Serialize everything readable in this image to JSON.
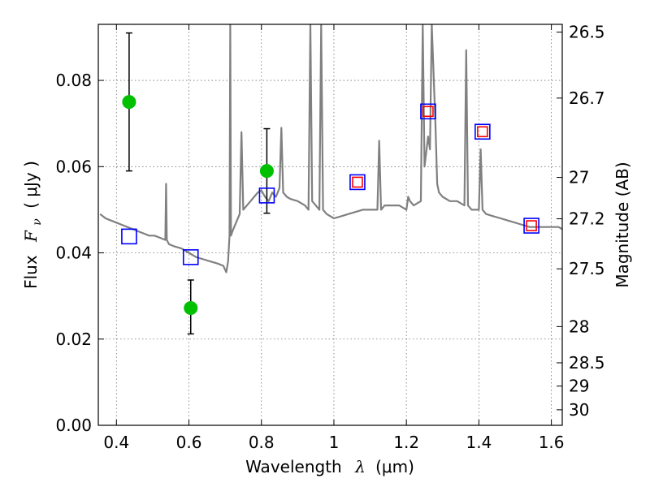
{
  "chart_data": {
    "type": "scatter",
    "xlabel": "Wavelength",
    "xlabel_symbol": "λ",
    "xlabel_unit": "(μm)",
    "ylabel": "Flux",
    "ylabel_symbol": "F",
    "ylabel_subscript": "ν",
    "ylabel_unit": "( μJy )",
    "y2label": "Magnitude (AB)",
    "xlim": [
      0.35,
      1.63
    ],
    "ylim": [
      0.0,
      0.093
    ],
    "grid": true,
    "x_ticks": [
      0.4,
      0.6,
      0.8,
      1.0,
      1.2,
      1.4,
      1.6
    ],
    "x_tick_labels": [
      "0.4",
      "0.6",
      "0.8",
      "1",
      "1.2",
      "1.4",
      "1.6"
    ],
    "y_ticks": [
      0.0,
      0.02,
      0.04,
      0.06,
      0.08
    ],
    "y_tick_labels": [
      "0.00",
      "0.02",
      "0.04",
      "0.06",
      "0.08"
    ],
    "y2_ticks": [
      {
        "label": "26.5",
        "flux": 0.0912
      },
      {
        "label": "26.7",
        "flux": 0.0759
      },
      {
        "label": "27",
        "flux": 0.0575
      },
      {
        "label": "27.2",
        "flux": 0.0479
      },
      {
        "label": "27.5",
        "flux": 0.0363
      },
      {
        "label": "28",
        "flux": 0.0229
      },
      {
        "label": "28.5",
        "flux": 0.0145
      },
      {
        "label": "29",
        "flux": 0.0091
      },
      {
        "label": "30",
        "flux": 0.0036
      }
    ],
    "series": [
      {
        "kind": "line",
        "color": "#808080",
        "x": [
          0.355,
          0.37,
          0.385,
          0.4,
          0.415,
          0.43,
          0.445,
          0.46,
          0.475,
          0.49,
          0.505,
          0.52,
          0.535,
          0.537,
          0.539,
          0.545,
          0.56,
          0.58,
          0.6,
          0.62,
          0.64,
          0.66,
          0.68,
          0.695,
          0.703,
          0.708,
          0.712,
          0.714,
          0.716,
          0.72,
          0.73,
          0.74,
          0.745,
          0.75,
          0.76,
          0.77,
          0.78,
          0.79,
          0.8,
          0.81,
          0.82,
          0.83,
          0.84,
          0.85,
          0.855,
          0.86,
          0.87,
          0.88,
          0.9,
          0.92,
          0.93,
          0.935,
          0.94,
          0.95,
          0.96,
          0.965,
          0.97,
          0.98,
          1.0,
          1.02,
          1.04,
          1.06,
          1.08,
          1.1,
          1.12,
          1.125,
          1.13,
          1.14,
          1.16,
          1.18,
          1.2,
          1.205,
          1.21,
          1.22,
          1.24,
          1.245,
          1.25,
          1.26,
          1.265,
          1.27,
          1.28,
          1.285,
          1.29,
          1.3,
          1.32,
          1.34,
          1.36,
          1.365,
          1.37,
          1.38,
          1.4,
          1.405,
          1.41,
          1.42,
          1.44,
          1.46,
          1.48,
          1.5,
          1.52,
          1.54,
          1.56,
          1.58,
          1.6,
          1.62,
          1.63
        ],
        "y": [
          0.049,
          0.048,
          0.0475,
          0.047,
          0.0465,
          0.046,
          0.0455,
          0.045,
          0.0445,
          0.044,
          0.044,
          0.0435,
          0.043,
          0.056,
          0.043,
          0.042,
          0.0415,
          0.041,
          0.04,
          0.039,
          0.0385,
          0.038,
          0.0375,
          0.037,
          0.0355,
          0.038,
          0.044,
          0.093,
          0.044,
          0.045,
          0.047,
          0.049,
          0.068,
          0.05,
          0.051,
          0.052,
          0.053,
          0.054,
          0.0545,
          0.053,
          0.052,
          0.054,
          0.053,
          0.055,
          0.069,
          0.054,
          0.053,
          0.0525,
          0.052,
          0.051,
          0.05,
          0.093,
          0.052,
          0.051,
          0.05,
          0.093,
          0.05,
          0.049,
          0.048,
          0.0485,
          0.049,
          0.0495,
          0.05,
          0.05,
          0.05,
          0.066,
          0.05,
          0.051,
          0.051,
          0.051,
          0.05,
          0.053,
          0.052,
          0.051,
          0.052,
          0.093,
          0.06,
          0.067,
          0.064,
          0.093,
          0.07,
          0.056,
          0.054,
          0.053,
          0.052,
          0.052,
          0.051,
          0.087,
          0.051,
          0.05,
          0.05,
          0.064,
          0.05,
          0.049,
          0.0485,
          0.048,
          0.0475,
          0.047,
          0.0465,
          0.046,
          0.046,
          0.046,
          0.046,
          0.046,
          0.0455
        ]
      },
      {
        "kind": "errorbar-points",
        "color": "#00c000",
        "x": [
          0.435,
          0.605,
          0.815
        ],
        "y": [
          0.075,
          0.0272,
          0.059
        ],
        "yerr_low": [
          0.059,
          0.0212,
          0.0492
        ],
        "yerr_high": [
          0.091,
          0.0337,
          0.0688
        ]
      },
      {
        "kind": "open-squares",
        "color": "#0000ff",
        "x": [
          0.435,
          0.605,
          0.815,
          1.065,
          1.26,
          1.41,
          1.545
        ],
        "y": [
          0.0438,
          0.039,
          0.0533,
          0.0564,
          0.0728,
          0.0681,
          0.0463
        ]
      },
      {
        "kind": "open-squares",
        "color": "#ff0000",
        "x": [
          1.065,
          1.26,
          1.41,
          1.545
        ],
        "y": [
          0.0564,
          0.0728,
          0.0681,
          0.0463
        ]
      }
    ]
  }
}
